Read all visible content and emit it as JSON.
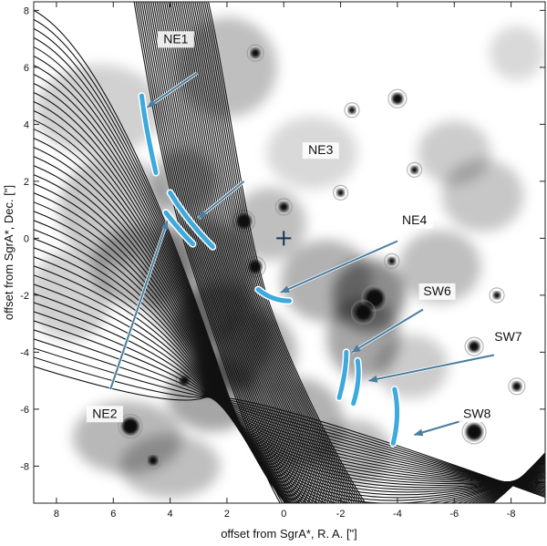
{
  "chart_data": {
    "type": "image",
    "xlabel": "offset from SgrA*, R. A. [\"]",
    "ylabel": "offset from SgrA*, Dec. [\"]",
    "xlim": [
      8.8,
      -9.2
    ],
    "ylim": [
      -9.3,
      8.3
    ],
    "x_ticks": [
      8,
      6,
      4,
      2,
      0,
      -2,
      -4,
      -6,
      -8
    ],
    "y_ticks": [
      8,
      6,
      4,
      2,
      0,
      -2,
      -4,
      -6,
      -8
    ],
    "center_marker": [
      0,
      0
    ],
    "arcs": [
      {
        "name": "NE1",
        "points": [
          [
            5.0,
            5.0
          ],
          [
            4.85,
            3.8
          ],
          [
            4.5,
            2.3
          ]
        ]
      },
      {
        "name": "NE2",
        "points": [
          [
            4.15,
            0.9
          ],
          [
            3.7,
            0.3
          ],
          [
            3.2,
            -0.2
          ]
        ]
      },
      {
        "name": "NE3",
        "points": [
          [
            4.0,
            1.6
          ],
          [
            3.4,
            0.6
          ],
          [
            2.5,
            -0.3
          ]
        ]
      },
      {
        "name": "NE4",
        "points": [
          [
            0.9,
            -1.8
          ],
          [
            0.4,
            -2.2
          ],
          [
            -0.2,
            -2.2
          ]
        ]
      },
      {
        "name": "SW6",
        "points": [
          [
            -2.2,
            -4.0
          ],
          [
            -2.2,
            -4.7
          ],
          [
            -1.95,
            -5.6
          ]
        ]
      },
      {
        "name": "SW7",
        "points": [
          [
            -2.6,
            -4.3
          ],
          [
            -2.7,
            -5.0
          ],
          [
            -2.45,
            -5.8
          ]
        ]
      },
      {
        "name": "SW8",
        "points": [
          [
            -3.9,
            -5.3
          ],
          [
            -4.1,
            -6.2
          ],
          [
            -3.85,
            -7.2
          ]
        ]
      }
    ],
    "annotations": [
      {
        "text": "NE1",
        "label": [
          3.8,
          6.85
        ],
        "arrow_from": [
          3.05,
          5.8
        ],
        "arrow_to": [
          4.8,
          4.6
        ]
      },
      {
        "text": "NE3",
        "label": [
          -1.3,
          2.95
        ],
        "arrow_from": [
          1.4,
          2.0
        ],
        "arrow_to": [
          3.0,
          0.7
        ]
      },
      {
        "text": "NE4",
        "label": [
          -4.6,
          0.5
        ],
        "arrow_from": [
          -4.0,
          -0.1
        ],
        "arrow_to": [
          0.1,
          -1.9
        ]
      },
      {
        "text": "SW6",
        "label": [
          -5.4,
          -2.0
        ],
        "arrow_from": [
          -4.9,
          -2.5
        ],
        "arrow_to": [
          -2.4,
          -4.0
        ]
      },
      {
        "text": "SW7",
        "label": [
          -7.9,
          -3.6
        ],
        "arrow_from": [
          -7.4,
          -4.1
        ],
        "arrow_to": [
          -3.0,
          -5.0
        ]
      },
      {
        "text": "SW8",
        "label": [
          -6.8,
          -6.3
        ],
        "arrow_from": [
          -6.3,
          -6.4
        ],
        "arrow_to": [
          -4.6,
          -6.9
        ]
      },
      {
        "text": "NE2",
        "label": [
          6.3,
          -6.3
        ],
        "arrow_from": [
          6.1,
          -5.3
        ],
        "arrow_to": [
          4.1,
          0.6
        ]
      }
    ],
    "colors": {
      "arc": "#3ea9dc",
      "arrow": "#4a7d9e",
      "curves": "#111111"
    }
  }
}
